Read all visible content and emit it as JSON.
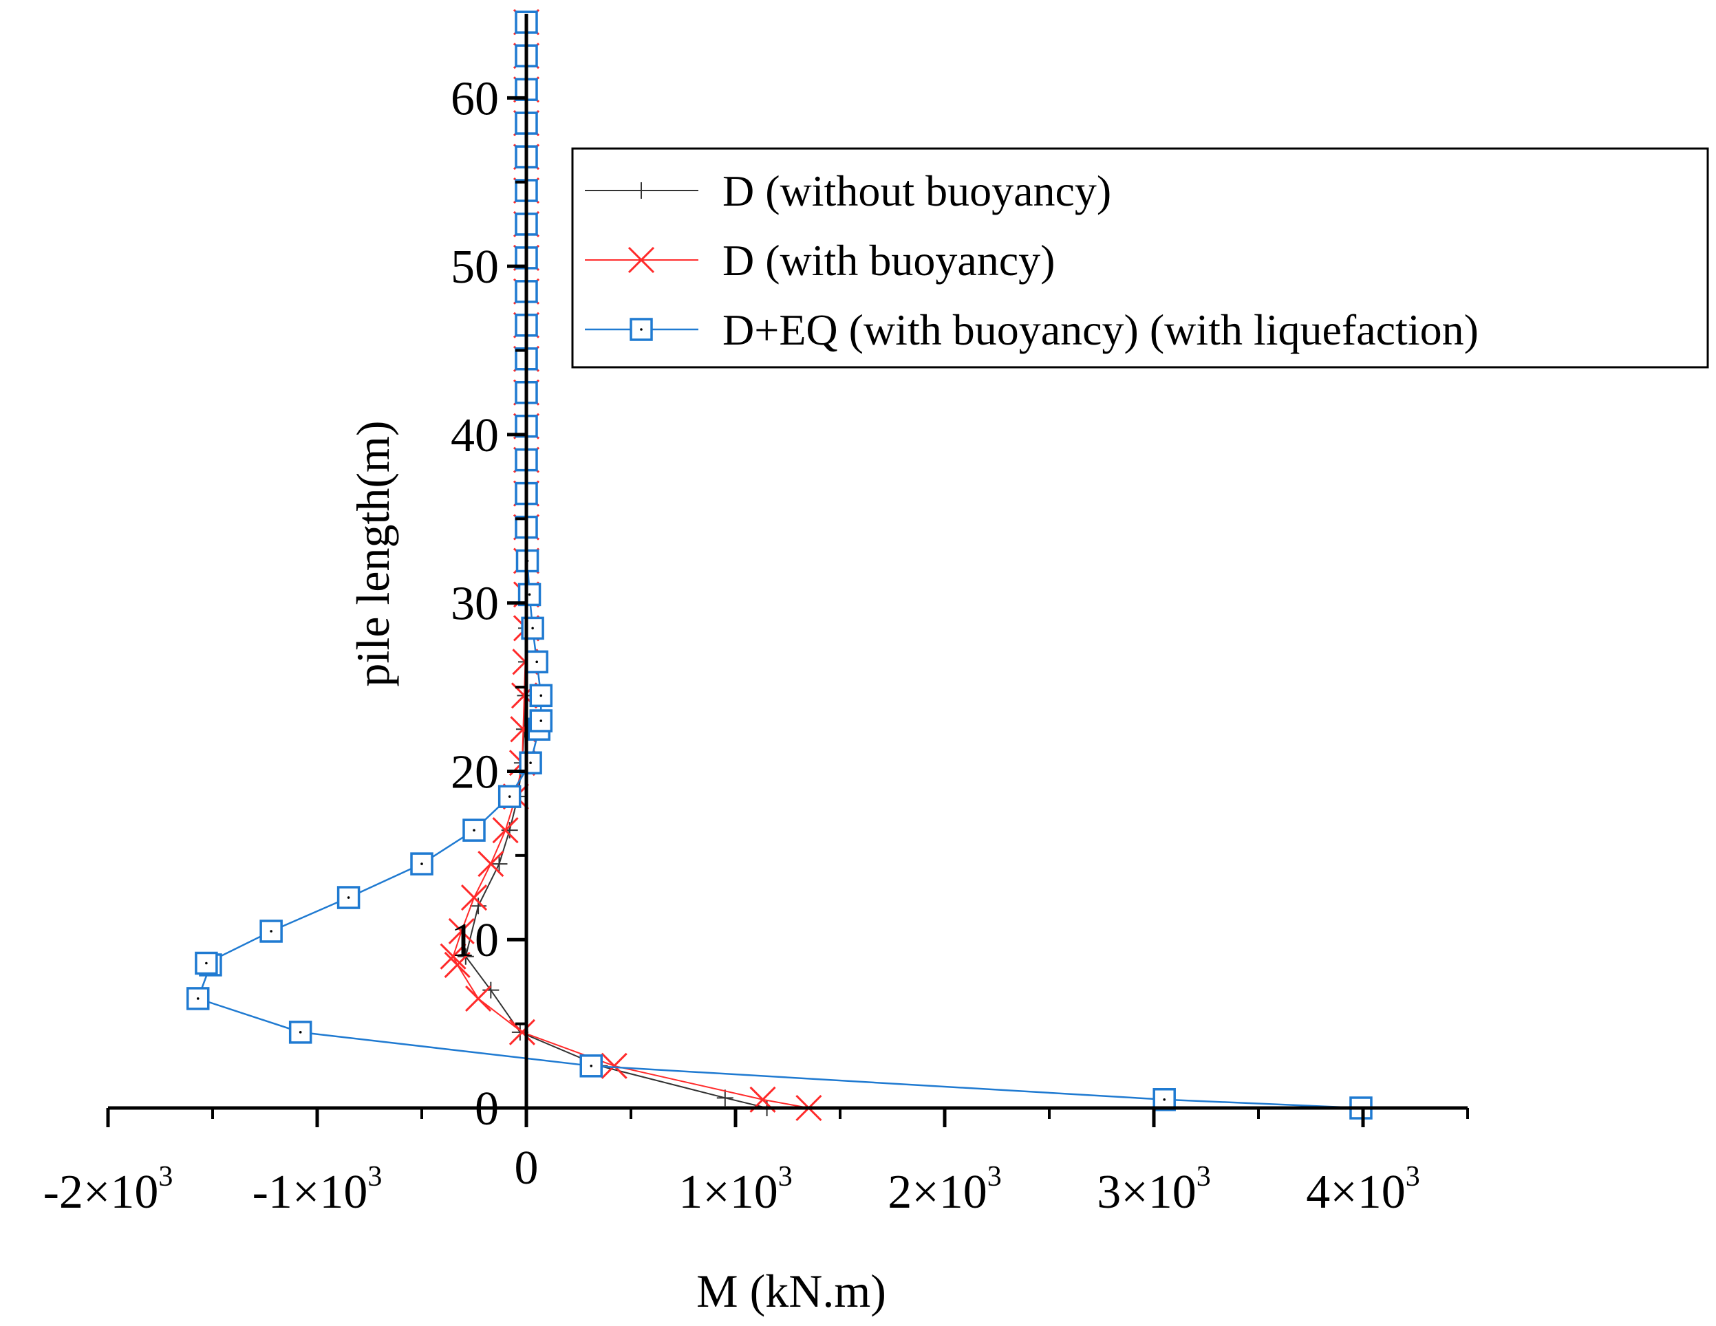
{
  "chart_data": {
    "type": "line",
    "xlabel": "M (kN.m)",
    "ylabel": "pile length(m)",
    "xlim": [
      -2000,
      4500
    ],
    "ylim": [
      0,
      65
    ],
    "x_ticks": [
      {
        "value": -2000,
        "mantissa": "-2",
        "exp": "3"
      },
      {
        "value": -1000,
        "mantissa": "-1",
        "exp": "3"
      },
      {
        "value": 0,
        "mantissa": "0",
        "exp": ""
      },
      {
        "value": 1000,
        "mantissa": "1",
        "exp": "3"
      },
      {
        "value": 2000,
        "mantissa": "2",
        "exp": "3"
      },
      {
        "value": 3000,
        "mantissa": "3",
        "exp": "3"
      },
      {
        "value": 4000,
        "mantissa": "4",
        "exp": "3"
      }
    ],
    "x_minor_ticks": [
      -1500,
      -500,
      500,
      1500,
      2500,
      3500,
      4500
    ],
    "y_ticks": [
      0,
      10,
      20,
      30,
      40,
      50,
      60
    ],
    "y_minor_ticks": [
      5,
      15,
      25,
      35,
      45,
      55
    ],
    "legend_position": "top-right",
    "grid": false,
    "series": [
      {
        "name": "D (without buoyancy)",
        "color": "#333333",
        "marker": "plus",
        "points": [
          [
            1150,
            0
          ],
          [
            950,
            0.6
          ],
          [
            350,
            2.5
          ],
          [
            -30,
            4.5
          ],
          [
            -170,
            7
          ],
          [
            -290,
            9
          ],
          [
            -230,
            12
          ],
          [
            -130,
            14.5
          ],
          [
            -80,
            16.5
          ],
          [
            -40,
            18.5
          ],
          [
            -20,
            20.5
          ],
          [
            -10,
            22.5
          ],
          [
            -5,
            24.5
          ],
          [
            0,
            26.5
          ],
          [
            0,
            28.5
          ],
          [
            0,
            30.5
          ],
          [
            0,
            32.5
          ],
          [
            0,
            34.5
          ],
          [
            0,
            36.5
          ],
          [
            0,
            38.5
          ],
          [
            0,
            40.5
          ],
          [
            0,
            42.5
          ],
          [
            0,
            44.5
          ],
          [
            0,
            46.5
          ],
          [
            0,
            48.5
          ],
          [
            0,
            50.5
          ],
          [
            0,
            52.5
          ],
          [
            0,
            54.5
          ],
          [
            0,
            56.5
          ],
          [
            0,
            58.5
          ],
          [
            0,
            60.5
          ],
          [
            0,
            62.5
          ],
          [
            0,
            64.5
          ]
        ]
      },
      {
        "name": "D (with buoyancy)",
        "color": "#ff2a2a",
        "marker": "x",
        "points": [
          [
            1350,
            0
          ],
          [
            1130,
            0.5
          ],
          [
            420,
            2.5
          ],
          [
            -20,
            4.5
          ],
          [
            -230,
            6.5
          ],
          [
            -330,
            8.5
          ],
          [
            -350,
            9
          ],
          [
            -310,
            10.5
          ],
          [
            -250,
            12.5
          ],
          [
            -170,
            14.5
          ],
          [
            -100,
            16.5
          ],
          [
            -50,
            18.5
          ],
          [
            -20,
            20.5
          ],
          [
            -15,
            22.5
          ],
          [
            -10,
            24.5
          ],
          [
            -5,
            26.5
          ],
          [
            0,
            28.5
          ],
          [
            0,
            30.5
          ],
          [
            0,
            32.5
          ],
          [
            0,
            34.5
          ],
          [
            0,
            36.5
          ],
          [
            0,
            38.5
          ],
          [
            0,
            40.5
          ],
          [
            0,
            42.5
          ],
          [
            0,
            44.5
          ],
          [
            0,
            46.5
          ],
          [
            0,
            48.5
          ],
          [
            0,
            50.5
          ],
          [
            0,
            52.5
          ],
          [
            0,
            54.5
          ],
          [
            0,
            56.5
          ],
          [
            0,
            58.5
          ],
          [
            0,
            60.5
          ],
          [
            0,
            62.5
          ],
          [
            0,
            64.5
          ]
        ]
      },
      {
        "name": "D+EQ (with buoyancy) (with liquefaction)",
        "color": "#1f7ad1",
        "marker": "square",
        "points": [
          [
            3990,
            0
          ],
          [
            3050,
            0.5
          ],
          [
            310,
            2.5
          ],
          [
            -1080,
            4.5
          ],
          [
            -1570,
            6.5
          ],
          [
            -1510,
            8.5
          ],
          [
            -1530,
            8.6
          ],
          [
            -1220,
            10.5
          ],
          [
            -850,
            12.5
          ],
          [
            -500,
            14.5
          ],
          [
            -250,
            16.5
          ],
          [
            -80,
            18.5
          ],
          [
            20,
            20.5
          ],
          [
            60,
            22.5
          ],
          [
            70,
            23
          ],
          [
            70,
            24.5
          ],
          [
            50,
            26.5
          ],
          [
            30,
            28.5
          ],
          [
            15,
            30.5
          ],
          [
            5,
            32.5
          ],
          [
            0,
            34.5
          ],
          [
            0,
            36.5
          ],
          [
            0,
            38.5
          ],
          [
            0,
            40.5
          ],
          [
            0,
            42.5
          ],
          [
            0,
            44.5
          ],
          [
            0,
            46.5
          ],
          [
            0,
            48.5
          ],
          [
            0,
            50.5
          ],
          [
            0,
            52.5
          ],
          [
            0,
            54.5
          ],
          [
            0,
            56.5
          ],
          [
            0,
            58.5
          ],
          [
            0,
            60.5
          ],
          [
            0,
            62.5
          ],
          [
            0,
            64.5
          ]
        ]
      }
    ]
  }
}
